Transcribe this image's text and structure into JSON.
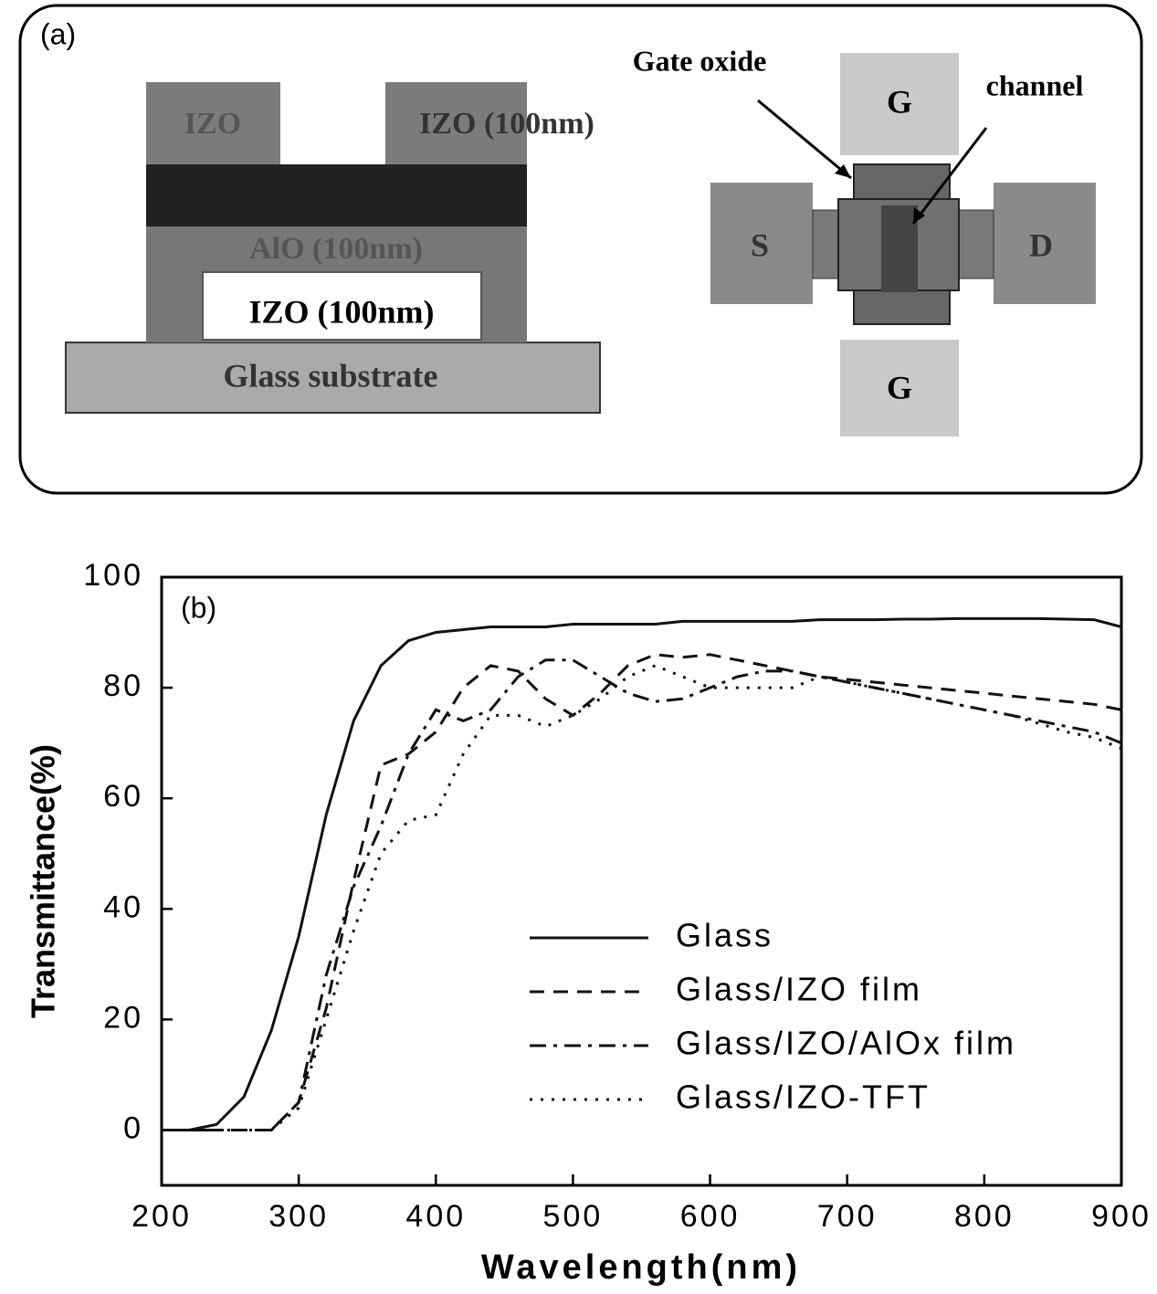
{
  "diagram": {
    "panel_label": "(a)",
    "cross_section": {
      "top_left": "IZO",
      "top_right": "IZO (100nm)",
      "middle": "AlO (100nm)",
      "bottom": "IZO (100nm)",
      "substrate": "Glass substrate"
    },
    "top_view": {
      "gate_oxide": "Gate oxide",
      "channel": "channel",
      "gate_top": "G",
      "source": "S",
      "drain": "D",
      "gate_bottom": "G"
    }
  },
  "chart_data": {
    "type": "line",
    "panel_label": "(b)",
    "x_label": "Wavelength(nm)",
    "y_label": "Transmittance(%)",
    "x": [
      200,
      220,
      240,
      260,
      280,
      300,
      320,
      340,
      360,
      380,
      400,
      420,
      440,
      460,
      480,
      500,
      520,
      540,
      560,
      580,
      600,
      620,
      640,
      660,
      680,
      700,
      720,
      740,
      760,
      780,
      800,
      820,
      840,
      860,
      880,
      900
    ],
    "series": [
      {
        "name": "Glass",
        "color": "#111111",
        "line_style": "solid",
        "values": [
          0,
          0,
          1,
          6,
          18,
          35,
          57,
          74,
          84,
          88.5,
          90,
          90.5,
          91,
          91,
          91,
          91.5,
          91.5,
          91.5,
          91.5,
          92,
          92,
          92,
          92,
          92,
          92.3,
          92.3,
          92.3,
          92.4,
          92.4,
          92.5,
          92.5,
          92.5,
          92.5,
          92.4,
          92.3,
          91
        ]
      },
      {
        "name": "Glass/IZO film",
        "color": "#111111",
        "line_style": "dashed",
        "values": [
          0,
          0,
          0,
          0,
          0,
          5,
          22,
          45,
          66,
          68,
          72,
          80,
          84,
          83,
          78,
          75,
          79,
          84,
          86,
          85.5,
          86,
          85,
          84,
          83,
          82,
          81.5,
          81,
          80.5,
          80,
          79.5,
          79,
          78.5,
          78,
          77.5,
          77,
          76
        ]
      },
      {
        "name": "Glass/IZO/AlOx film",
        "color": "#111111",
        "line_style": "dashdot",
        "values": [
          0,
          0,
          0,
          0,
          0,
          5,
          28,
          44,
          55,
          68,
          76,
          74,
          76,
          82,
          85,
          85,
          82,
          79,
          77.5,
          78,
          80,
          82,
          83,
          83,
          82,
          81,
          80,
          79,
          78,
          77,
          76,
          75,
          74,
          73,
          72,
          70
        ]
      },
      {
        "name": "Glass/IZO-TFT",
        "color": "#111111",
        "line_style": "dotted",
        "values": [
          0,
          0,
          0,
          0,
          0,
          4,
          20,
          36,
          50,
          56,
          57,
          68,
          75,
          75,
          73,
          75,
          78,
          82,
          84,
          82,
          80,
          80,
          80,
          80,
          82,
          81,
          80,
          79,
          78,
          77,
          76,
          75,
          73.5,
          72,
          71,
          69
        ]
      }
    ],
    "xlim": [
      200,
      900
    ],
    "xticks": [
      200,
      300,
      400,
      500,
      600,
      700,
      800,
      900
    ],
    "ylim": [
      -10,
      100
    ],
    "yticks": [
      0,
      20,
      40,
      60,
      80,
      100
    ],
    "legend": "lower right"
  }
}
